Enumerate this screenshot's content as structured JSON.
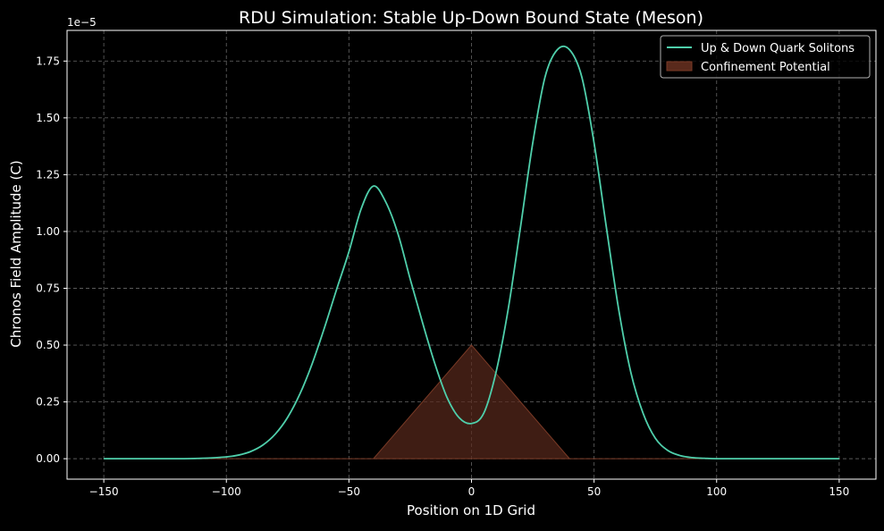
{
  "chart_data": {
    "type": "line",
    "title": "RDU Simulation: Stable Up-Down Bound State (Meson)",
    "xlabel": "Position on 1D Grid",
    "ylabel": "Chronos Field Amplitude (C)",
    "y_offset_label": "1e−5",
    "xlim": [
      -165,
      165
    ],
    "ylim": [
      -0.09,
      1.885
    ],
    "y_scale_note": "values in units of 1e-5",
    "grid": true,
    "grid_style": "dashed",
    "legend_position": "top-right",
    "x_ticks": [
      -150,
      -100,
      -50,
      0,
      50,
      100,
      150
    ],
    "x_tick_labels": [
      "−150",
      "−100",
      "−50",
      "0",
      "50",
      "100",
      "150"
    ],
    "y_ticks": [
      0.0,
      0.25,
      0.5,
      0.75,
      1.0,
      1.25,
      1.5,
      1.75
    ],
    "y_tick_labels": [
      "0.00",
      "0.25",
      "0.50",
      "0.75",
      "1.00",
      "1.25",
      "1.50",
      "1.75"
    ],
    "series": [
      {
        "name": "Up & Down Quark Solitons",
        "kind": "line",
        "color": "#4fcfab",
        "x": [
          -150,
          -120,
          -110,
          -100,
          -95,
          -90,
          -85,
          -80,
          -75,
          -70,
          -65,
          -60,
          -55,
          -50,
          -45,
          -40,
          -35,
          -30,
          -25,
          -20,
          -15,
          -10,
          -5,
          0,
          5,
          10,
          15,
          20,
          25,
          30,
          35,
          40,
          45,
          50,
          55,
          60,
          65,
          70,
          75,
          80,
          85,
          90,
          95,
          100,
          110,
          120,
          150
        ],
        "y": [
          0.0,
          0.0,
          0.002,
          0.008,
          0.016,
          0.032,
          0.061,
          0.109,
          0.182,
          0.285,
          0.418,
          0.576,
          0.746,
          0.911,
          1.1,
          1.2,
          1.13,
          0.99,
          0.79,
          0.6,
          0.42,
          0.27,
          0.18,
          0.155,
          0.2,
          0.38,
          0.66,
          1.02,
          1.39,
          1.68,
          1.8,
          1.8,
          1.68,
          1.39,
          1.02,
          0.66,
          0.38,
          0.2,
          0.09,
          0.037,
          0.014,
          0.005,
          0.002,
          0.0,
          0.0,
          0.0,
          0.0
        ]
      },
      {
        "name": "Confinement Potential",
        "kind": "area",
        "color": "#5a2a1c",
        "edge_color": "#7a3a26",
        "x": [
          -150,
          -40,
          0,
          40,
          150
        ],
        "y": [
          0.0,
          0.0,
          0.5,
          0.0,
          0.0
        ]
      }
    ]
  }
}
